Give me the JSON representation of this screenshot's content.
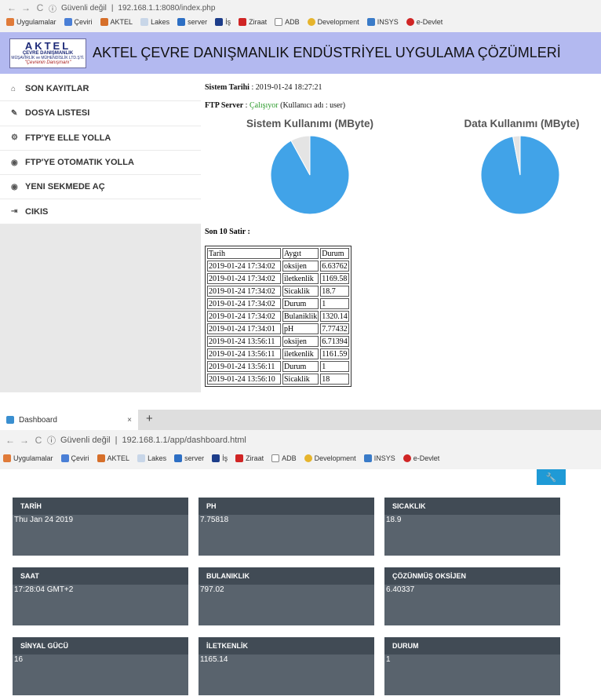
{
  "browser1": {
    "security": "Güvenli değil",
    "url": "192.168.1.1:8080/index.php",
    "bookmarks": [
      "Uygulamalar",
      "Çeviri",
      "AKTEL",
      "Lakes",
      "server",
      "İş",
      "Ziraat",
      "ADB",
      "Development",
      "INSYS",
      "e-Devlet"
    ]
  },
  "app": {
    "logo_main": "AKTEL",
    "logo_sub1": "ÇEVRE DANIŞMANLIK",
    "logo_sub2": "MÜŞAVİRLİK ve MÜHENDİSLİK LTD.ŞTİ.",
    "logo_tag": "\"Çevrenin Danışmanı\"",
    "title": "AKTEL ÇEVRE DANIŞMANLIK ENDÜSTRİYEL UYGULAMA ÇÖZÜMLERİ",
    "menu": [
      "SON KAYITLAR",
      "DOSYA LISTESI",
      "FTP'YE ELLE YOLLA",
      "FTP'YE OTOMATIK YOLLA",
      "YENI SEKMEDE AÇ",
      "CIKIS"
    ],
    "menu_icons": [
      "home-icon",
      "edit-icon",
      "cogs-icon",
      "globe-icon",
      "globe-icon",
      "logout-icon"
    ],
    "system_time_label": "Sistem Tarihi",
    "system_time": "2019-01-24 18:27:21",
    "ftp_label": "FTP Server",
    "ftp_status": "Çalışıyor",
    "ftp_user": "(Kullanıcı adı : user)",
    "table_title": "Son 10 Satir :"
  },
  "chart_data": [
    {
      "type": "pie",
      "title": "Sistem Kullanımı (MByte)",
      "slices": [
        {
          "value": 92,
          "color": "#41a3e8"
        },
        {
          "value": 8,
          "color": "#e4e4e4"
        }
      ]
    },
    {
      "type": "pie",
      "title": "Data Kullanımı (MByte)",
      "slices": [
        {
          "value": 97,
          "color": "#41a3e8"
        },
        {
          "value": 3,
          "color": "#e4e4e4"
        }
      ]
    }
  ],
  "table": {
    "headers": [
      "Tarih",
      "Aygıt",
      "Durum"
    ],
    "rows": [
      [
        "2019-01-24 17:34:02",
        "oksijen",
        "6.63762"
      ],
      [
        "2019-01-24 17:34:02",
        "iletkenlik",
        "1169.58"
      ],
      [
        "2019-01-24 17:34:02",
        "Sicaklik",
        "18.7"
      ],
      [
        "2019-01-24 17:34:02",
        "Durum",
        "1"
      ],
      [
        "2019-01-24 17:34:02",
        "Bulaniklik",
        "1320.14"
      ],
      [
        "2019-01-24 17:34:01",
        "pH",
        "7.77432"
      ],
      [
        "2019-01-24 13:56:11",
        "oksijen",
        "6.71394"
      ],
      [
        "2019-01-24 13:56:11",
        "iletkenlik",
        "1161.59"
      ],
      [
        "2019-01-24 13:56:11",
        "Durum",
        "1"
      ],
      [
        "2019-01-24 13:56:10",
        "Sicaklik",
        "18"
      ]
    ]
  },
  "browser2": {
    "tab_title": "Dashboard",
    "security": "Güvenli değil",
    "url": "192.168.1.1/app/dashboard.html",
    "bookmarks": [
      "Uygulamalar",
      "Çeviri",
      "AKTEL",
      "Lakes",
      "server",
      "İş",
      "Ziraat",
      "ADB",
      "Development",
      "INSYS",
      "e-Devlet"
    ]
  },
  "dashboard": {
    "cards": [
      {
        "label": "TARİH",
        "value": "Thu Jan 24 2019"
      },
      {
        "label": "PH",
        "value": "7.75818"
      },
      {
        "label": "SICAKLIK",
        "value": "18.9"
      },
      {
        "label": "SAAT",
        "value": "17:28:04 GMT+2"
      },
      {
        "label": "BULANIKLIK",
        "value": "797.02"
      },
      {
        "label": "ÇÖZÜNMÜŞ OKSİJEN",
        "value": "6.40337"
      },
      {
        "label": "SİNYAL GÜCÜ",
        "value": "16"
      },
      {
        "label": "İLETKENLİK",
        "value": "1165.14"
      },
      {
        "label": "DURUM",
        "value": "1"
      }
    ]
  },
  "colors": {
    "banner": "#b3b9f0",
    "card_head": "#414b55",
    "card_body": "#59636d",
    "accent": "#1f9ad6",
    "pie_main": "#41a3e8"
  }
}
